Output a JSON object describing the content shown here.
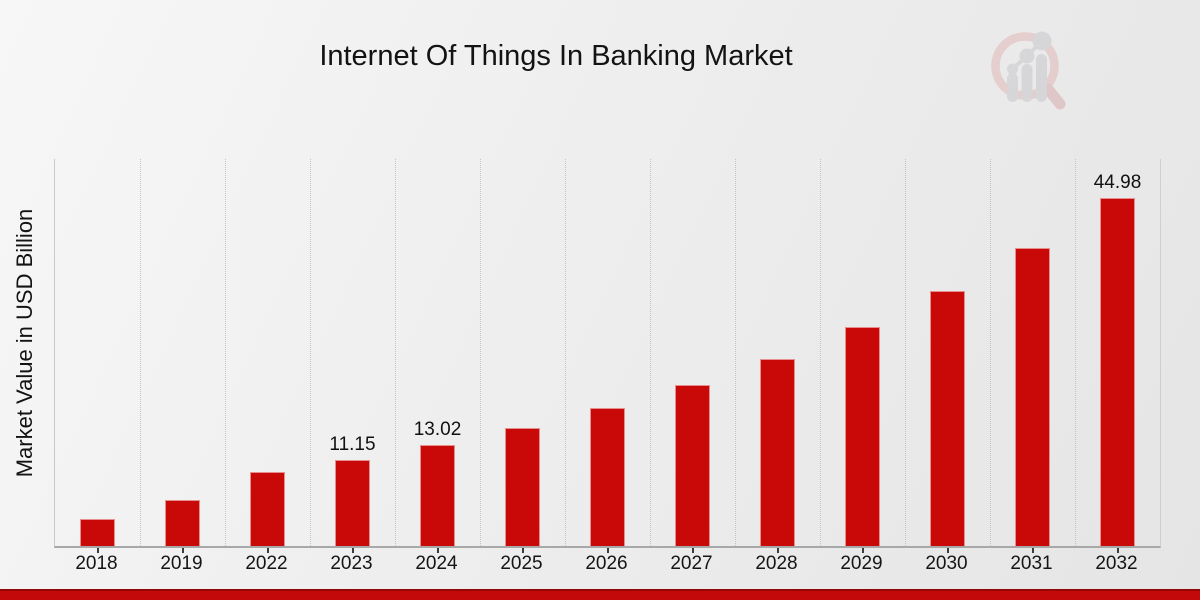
{
  "chart_data": {
    "type": "bar",
    "title": "Internet Of Things In Banking Market",
    "ylabel": "Market Value in USD Billion",
    "xlabel": "",
    "categories": [
      "2018",
      "2019",
      "2022",
      "2023",
      "2024",
      "2025",
      "2026",
      "2027",
      "2028",
      "2029",
      "2030",
      "2031",
      "2032"
    ],
    "values": [
      3.5,
      6.0,
      9.6,
      11.15,
      13.02,
      15.25,
      17.8,
      20.75,
      24.2,
      28.3,
      33.0,
      38.55,
      44.98
    ],
    "data_labels": {
      "2023": "11.15",
      "2024": "13.02",
      "2032": "44.98"
    },
    "ylim": [
      0,
      50
    ],
    "grid": "vertical-dotted",
    "legend": "none",
    "bar_color": "#c90808"
  },
  "footer": {
    "bar_color": "#c30909",
    "bar_border_color": "#930707"
  },
  "logo": {
    "icon": "magnifier-bar-chart-logo",
    "ring_color": "#dfb3b3",
    "handle_color": "#d9a6a6",
    "bars_color": "#c5c5ca"
  },
  "colors": {
    "background": "#efefef",
    "grid": "#c4c4c4",
    "axis": "#a8a8a8",
    "text": "#151515"
  }
}
